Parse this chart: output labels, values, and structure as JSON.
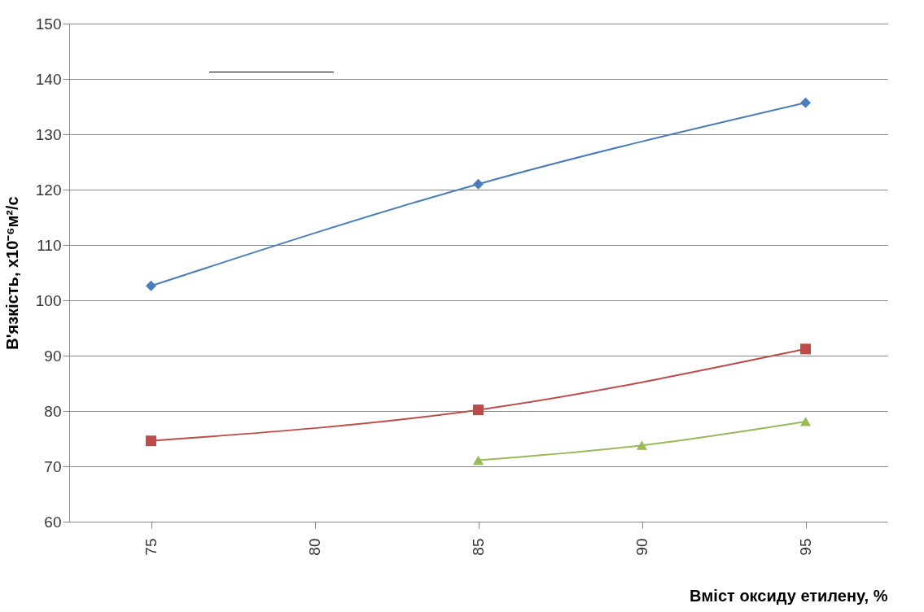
{
  "chart_data": {
    "type": "line",
    "xlabel": "Вміст оксиду етилену, %",
    "ylabel": "В'язкість, х10⁻⁶м²/с",
    "categories": [
      "75",
      "80",
      "85",
      "90",
      "95"
    ],
    "ylim": [
      60,
      150
    ],
    "yticks": [
      60,
      70,
      80,
      90,
      100,
      110,
      120,
      130,
      140,
      150
    ],
    "grid": "y",
    "legend": false,
    "series": [
      {
        "color": "#4a7ebb",
        "marker": "diamond",
        "values": [
          102.6,
          null,
          121,
          null,
          135.7
        ]
      },
      {
        "color": "#be4b48",
        "marker": "square",
        "values": [
          74.6,
          null,
          80.2,
          null,
          91.2
        ]
      },
      {
        "color": "#98b954",
        "marker": "triangle",
        "values": [
          null,
          null,
          71.1,
          73.8,
          78.1
        ]
      }
    ]
  }
}
